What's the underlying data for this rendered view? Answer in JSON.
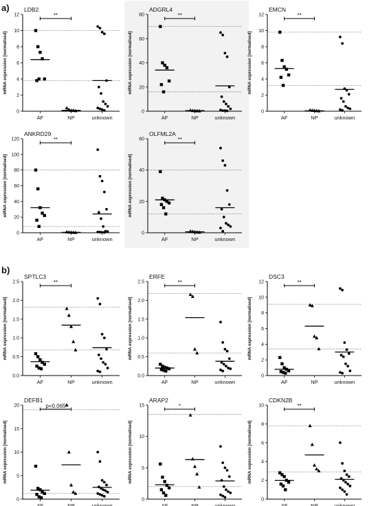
{
  "panel_labels": [
    "a)",
    "b)"
  ],
  "ylabel": "mRNA expression [normalised]",
  "groups": [
    "AF",
    "NP",
    "unknown"
  ],
  "chart_data": [
    {
      "type": "scatter",
      "title": "LDB2",
      "ylim": [
        0,
        12
      ],
      "yticks": [
        0,
        2,
        4,
        6,
        8,
        10,
        12
      ],
      "significance": {
        "from": "AF",
        "to": "NP",
        "label": "**"
      },
      "reference_lines": [
        3.8,
        10.0
      ],
      "series": [
        {
          "name": "AF",
          "marker": "square",
          "values": [
            10.0,
            8.0,
            7.3,
            6.5,
            4.0,
            3.8,
            4.0
          ],
          "median": 6.4
        },
        {
          "name": "NP",
          "marker": "triangle",
          "values": [
            0.4,
            0.2,
            0.1,
            0.1,
            0.05
          ],
          "median": 0.1
        },
        {
          "name": "unknown",
          "marker": "dot",
          "values": [
            10.5,
            10.3,
            9.8,
            9.6,
            3.8,
            3.0,
            2.2,
            1.2,
            0.9,
            0.6,
            0.4,
            0.3,
            0.2,
            0.1
          ],
          "median": 3.8
        }
      ]
    },
    {
      "type": "scatter",
      "title": "ADGRL4",
      "ylim": [
        0,
        80
      ],
      "yticks": [
        0,
        20,
        40,
        60,
        80
      ],
      "significance": {
        "from": "AF",
        "to": "NP",
        "label": "**"
      },
      "reference_lines": [
        16,
        70
      ],
      "series": [
        {
          "name": "AF",
          "marker": "square",
          "values": [
            70,
            40,
            38,
            36,
            25,
            22,
            16
          ],
          "median": 34
        },
        {
          "name": "NP",
          "marker": "triangle",
          "values": [
            0.8,
            0.5,
            0.4,
            0.3,
            0.2
          ],
          "median": 0.5
        },
        {
          "name": "unknown",
          "marker": "dot",
          "values": [
            65,
            63,
            48,
            45,
            20,
            12,
            8,
            6,
            4,
            2,
            1,
            0.5,
            0.5,
            0.3
          ],
          "median": 21
        }
      ]
    },
    {
      "type": "scatter",
      "title": "EMCN",
      "ylim": [
        0,
        12
      ],
      "yticks": [
        0,
        2,
        4,
        6,
        8,
        10,
        12
      ],
      "significance": {
        "from": "AF",
        "to": "NP",
        "label": "**"
      },
      "reference_lines": [
        3.2,
        9.8
      ],
      "series": [
        {
          "name": "AF",
          "marker": "square",
          "values": [
            9.8,
            6.3,
            5.5,
            5.2,
            4.5,
            4.2,
            3.2
          ],
          "median": 5.3
        },
        {
          "name": "NP",
          "marker": "triangle",
          "values": [
            0.15,
            0.1,
            0.08,
            0.05,
            0.03
          ],
          "median": 0.05
        },
        {
          "name": "unknown",
          "marker": "dot",
          "values": [
            9.2,
            8.4,
            2.8,
            2.6,
            2.1,
            1.6,
            1.2,
            0.6,
            0.4,
            0.3,
            0.2,
            0.1
          ],
          "median": 2.7
        }
      ]
    },
    {
      "type": "scatter",
      "title": "ANKRD29",
      "ylim": [
        0,
        120
      ],
      "yticks": [
        0,
        20,
        40,
        60,
        80,
        100,
        120
      ],
      "significance": {
        "from": "AF",
        "to": "NP",
        "label": "**"
      },
      "reference_lines": [
        8,
        80
      ],
      "series": [
        {
          "name": "AF",
          "marker": "square",
          "values": [
            80,
            56,
            32,
            25,
            22,
            16,
            8
          ],
          "median": 32
        },
        {
          "name": "NP",
          "marker": "triangle",
          "values": [
            1,
            0.8,
            0.6,
            0.4,
            0.2
          ],
          "median": 0.5
        },
        {
          "name": "unknown",
          "marker": "dot",
          "values": [
            106,
            72,
            66,
            52,
            30,
            26,
            18,
            8,
            2,
            1.5,
            1,
            0.8,
            0.5,
            0.4
          ],
          "median": 24
        }
      ]
    },
    {
      "type": "scatter",
      "title": "OLFML2A",
      "ylim": [
        0,
        60
      ],
      "yticks": [
        0,
        20,
        40,
        60
      ],
      "significance": {
        "from": "AF",
        "to": "NP",
        "label": "**"
      },
      "reference_lines": [
        12,
        40
      ],
      "series": [
        {
          "name": "AF",
          "marker": "square",
          "values": [
            39,
            22,
            21,
            20,
            19,
            18,
            16,
            12
          ],
          "median": 21
        },
        {
          "name": "NP",
          "marker": "triangle",
          "values": [
            1,
            0.8,
            0.5,
            0.4,
            0.3
          ],
          "median": 0.6
        },
        {
          "name": "unknown",
          "marker": "dot",
          "values": [
            54,
            46,
            43,
            27,
            18,
            15,
            10,
            6,
            5,
            4,
            3,
            1
          ],
          "median": 16
        }
      ]
    },
    {
      "type": "scatter",
      "title": "SPTLC3",
      "ylim": [
        0,
        2.5
      ],
      "yticks": [
        0.0,
        0.5,
        1.0,
        1.5,
        2.0,
        2.5
      ],
      "significance": {
        "from": "AF",
        "to": "NP",
        "label": "**"
      },
      "reference_lines": [
        0.68,
        1.82
      ],
      "series": [
        {
          "name": "AF",
          "marker": "square",
          "values": [
            0.58,
            0.5,
            0.42,
            0.35,
            0.3,
            0.25,
            0.2,
            0.18
          ],
          "median": 0.37
        },
        {
          "name": "NP",
          "marker": "triangle",
          "values": [
            1.78,
            1.6,
            1.3,
            0.9,
            0.68
          ],
          "median": 1.34
        },
        {
          "name": "unknown",
          "marker": "dot",
          "values": [
            2.05,
            1.9,
            1.1,
            1.0,
            0.7,
            0.55,
            0.45,
            0.35,
            0.3,
            0.2,
            0.12,
            0.1
          ],
          "median": 0.74
        }
      ]
    },
    {
      "type": "scatter",
      "title": "ERFE",
      "ylim": [
        0,
        2.5
      ],
      "yticks": [
        0.0,
        0.5,
        1.0,
        1.5,
        2.0,
        2.5
      ],
      "significance": {
        "from": "AF",
        "to": "NP",
        "label": "**"
      },
      "reference_lines": [
        0.6,
        2.18
      ],
      "series": [
        {
          "name": "AF",
          "marker": "square",
          "values": [
            0.3,
            0.25,
            0.22,
            0.2,
            0.18,
            0.16,
            0.14,
            0.12
          ],
          "median": 0.2
        },
        {
          "name": "NP",
          "marker": "triangle",
          "values": [
            2.15,
            2.1,
            0.7,
            0.6
          ],
          "median": 1.54
        },
        {
          "name": "unknown",
          "marker": "dot",
          "values": [
            1.42,
            0.88,
            0.7,
            0.65,
            0.45,
            0.35,
            0.3,
            0.25,
            0.2,
            0.18,
            0.15,
            0.12
          ],
          "median": 0.38
        }
      ]
    },
    {
      "type": "scatter",
      "title": "DSC3",
      "ylim": [
        0,
        12
      ],
      "yticks": [
        0,
        2,
        4,
        6,
        8,
        10,
        12
      ],
      "significance": {
        "from": "AF",
        "to": "NP",
        "label": "**"
      },
      "reference_lines": [
        3.4,
        9.1
      ],
      "series": [
        {
          "name": "AF",
          "marker": "square",
          "values": [
            2.3,
            1.5,
            1.0,
            0.8,
            0.6,
            0.5,
            0.4,
            0.3
          ],
          "median": 0.8
        },
        {
          "name": "NP",
          "marker": "triangle",
          "values": [
            9.0,
            8.9,
            5.0,
            4.8,
            3.4
          ],
          "median": 6.3
        },
        {
          "name": "unknown",
          "marker": "dot",
          "values": [
            11.1,
            10.9,
            4.2,
            3.3,
            2.8,
            2.6,
            2.4,
            1.5,
            1.2,
            0.6,
            0.4,
            0.3
          ],
          "median": 3.0
        }
      ]
    },
    {
      "type": "scatter",
      "title": "DEFB1",
      "ylim": [
        0,
        20
      ],
      "yticks": [
        0,
        5,
        10,
        15,
        20
      ],
      "significance": {
        "from": "AF",
        "to": "NP",
        "label": "p=0.065"
      },
      "reference_lines": [
        1.2,
        19
      ],
      "series": [
        {
          "name": "AF",
          "marker": "square",
          "values": [
            7,
            2.3,
            2.0,
            1.5,
            1.2,
            1.0,
            0.5,
            0.3
          ],
          "median": 1.9
        },
        {
          "name": "NP",
          "marker": "triangle",
          "values": [
            20,
            10,
            3,
            1.5,
            1.2
          ],
          "median": 7.3
        },
        {
          "name": "unknown",
          "marker": "dot",
          "values": [
            10,
            8,
            4,
            3.6,
            3,
            2.6,
            2.3,
            2.0,
            1.8,
            1.5,
            1.2,
            1.0,
            0.8,
            0.6
          ],
          "median": 2.5
        }
      ]
    },
    {
      "type": "scatter",
      "title": "ARAP2",
      "ylim": [
        0,
        15
      ],
      "yticks": [
        0,
        5,
        10,
        15
      ],
      "significance": {
        "from": "AF",
        "to": "NP",
        "label": "*"
      },
      "reference_lines": [
        2,
        13.5
      ],
      "series": [
        {
          "name": "AF",
          "marker": "square",
          "values": [
            5.6,
            3.5,
            2.8,
            2.2,
            1.8,
            1.5,
            1.0,
            0.6
          ],
          "median": 2.3
        },
        {
          "name": "NP",
          "marker": "triangle",
          "values": [
            13.4,
            6.4,
            5.2,
            4.0,
            1.9
          ],
          "median": 6.3
        },
        {
          "name": "unknown",
          "marker": "dot",
          "values": [
            8.4,
            5.8,
            5.0,
            4.6,
            3.6,
            3.0,
            2.0,
            1.5,
            1.2,
            1.0,
            0.7,
            0.5,
            0.3
          ],
          "median": 2.9
        }
      ]
    },
    {
      "type": "scatter",
      "title": "CDKN2B",
      "ylim": [
        0,
        10
      ],
      "yticks": [
        0,
        2,
        4,
        6,
        8,
        10
      ],
      "significance": {
        "from": "AF",
        "to": "NP",
        "label": "**"
      },
      "reference_lines": [
        2.9,
        7.8
      ],
      "series": [
        {
          "name": "AF",
          "marker": "square",
          "values": [
            2.8,
            2.6,
            2.4,
            2.0,
            1.8,
            1.6,
            1.4,
            1.0
          ],
          "median": 2.0
        },
        {
          "name": "NP",
          "marker": "triangle",
          "values": [
            7.8,
            5.8,
            3.6,
            3.2,
            3.0
          ],
          "median": 4.7
        },
        {
          "name": "unknown",
          "marker": "dot",
          "values": [
            6.0,
            3.8,
            3.0,
            2.6,
            2.4,
            2.2,
            2.0,
            1.8,
            1.6,
            1.4,
            1.2,
            1.0,
            0.8,
            0.5
          ],
          "median": 2.1
        }
      ]
    }
  ]
}
